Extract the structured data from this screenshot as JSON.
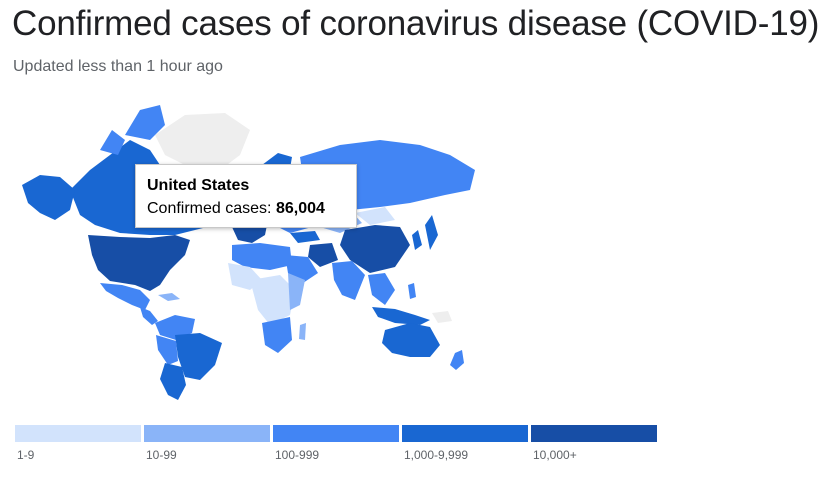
{
  "header": {
    "title": "Confirmed cases of coronavirus disease (COVID-19)",
    "subtitle": "Updated less than 1 hour ago"
  },
  "tooltip": {
    "country": "United States",
    "cases_label": "Confirmed cases:",
    "cases_value": "86,004"
  },
  "legend": [
    {
      "label": "1-9",
      "color": "#d2e3fc"
    },
    {
      "label": "10-99",
      "color": "#8ab4f8"
    },
    {
      "label": "100-999",
      "color": "#4285f4"
    },
    {
      "label": "1,000-9,999",
      "color": "#1967d2"
    },
    {
      "label": "10,000+",
      "color": "#174ea6"
    }
  ],
  "colors": {
    "no_data": "#eeeeee",
    "background": "#ffffff"
  }
}
